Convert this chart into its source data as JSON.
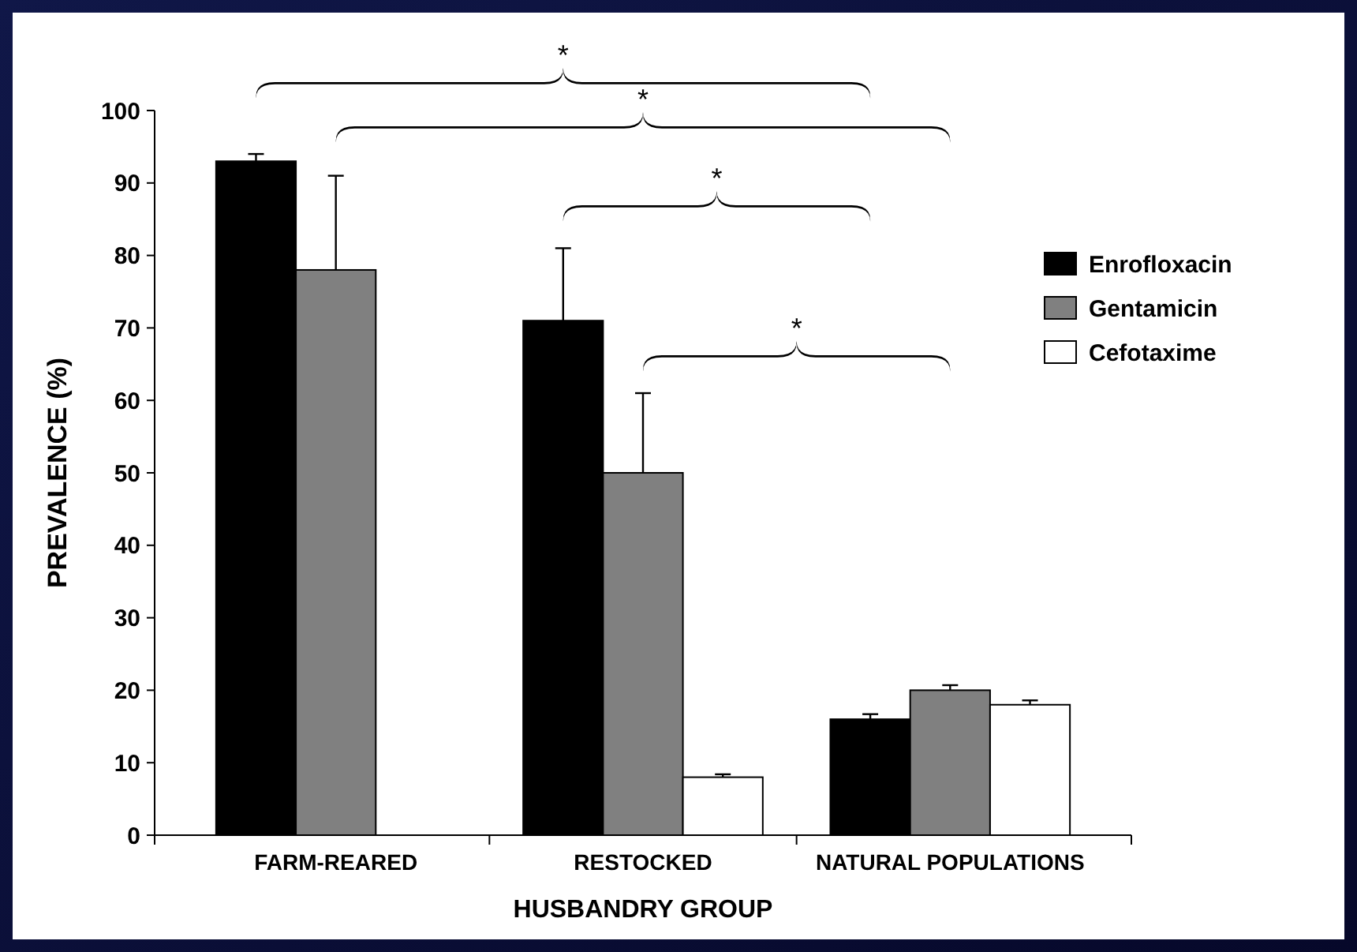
{
  "chart_data": {
    "type": "bar",
    "xlabel": "HUSBANDRY GROUP",
    "ylabel": "PREVALENCE (%)",
    "categories": [
      "FARM-REARED",
      "RESTOCKED",
      "NATURAL POPULATIONS"
    ],
    "series": [
      {
        "name": "Enrofloxacin",
        "color": "#000000",
        "values": [
          93,
          71,
          16
        ],
        "errors": [
          [
            93,
            94
          ],
          [
            71,
            81
          ],
          [
            16,
            16.7
          ]
        ]
      },
      {
        "name": "Gentamicin",
        "color": "#808080",
        "values": [
          78,
          50,
          20
        ],
        "errors": [
          [
            78,
            91
          ],
          [
            50,
            61
          ],
          [
            20,
            20.7
          ]
        ]
      },
      {
        "name": "Cefotaxime",
        "color": "#ffffff",
        "values": [
          0,
          8,
          18
        ],
        "errors": [
          null,
          [
            8,
            8.4
          ],
          [
            18,
            18.6
          ]
        ]
      }
    ],
    "ylim": [
      0,
      100
    ],
    "yticks": [
      0,
      10,
      20,
      30,
      40,
      50,
      60,
      70,
      80,
      90,
      100
    ],
    "grid": false,
    "legend": "right",
    "annotations": [
      "*",
      "*",
      "*",
      "*"
    ]
  }
}
